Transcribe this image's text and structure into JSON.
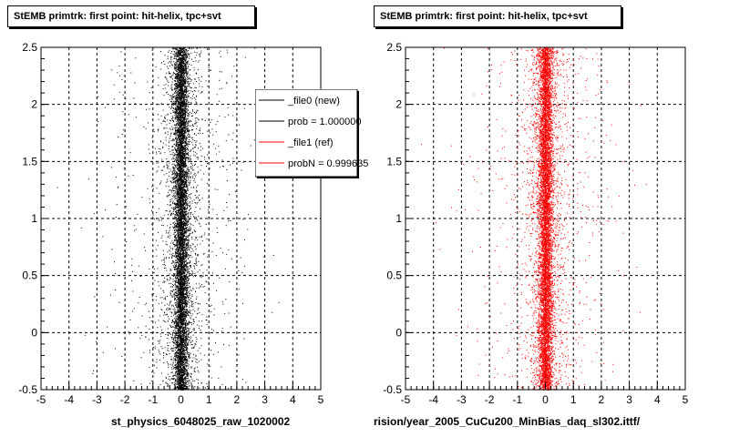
{
  "chart_data": [
    {
      "type": "scatter",
      "title": "StEMB primtrk: first point: hit-helix, tpc+svt",
      "xlabel": "st_physics_6048025_raw_1020002",
      "ylabel": "",
      "xlim": [
        -5,
        5
      ],
      "ylim": [
        -0.5,
        2.5
      ],
      "x_ticks": [
        "-5",
        "-4",
        "-3",
        "-2",
        "-1",
        "0",
        "1",
        "2",
        "3",
        "4",
        "5"
      ],
      "y_ticks": [
        "-0.5",
        "0",
        "0.5",
        "1",
        "1.5",
        "2",
        "2.5"
      ],
      "grid": true,
      "series": [
        {
          "name": "_file0 (new)",
          "color": "#000000",
          "distribution": {
            "x_center": 0.0,
            "x_core_sigma": 0.12,
            "x_wide_sigma": 0.9,
            "y_min": -0.5,
            "y_max": 2.5
          }
        }
      ],
      "legend": {
        "placement": "top-right",
        "entries": [
          {
            "label": "_file0 (new)",
            "color": "#000000"
          },
          {
            "label": "prob = 1.000000",
            "color": "#000000"
          },
          {
            "label": "_file1 (ref)",
            "color": "#ff0000"
          },
          {
            "label": "probN = 0.999635",
            "color": "#ff0000"
          }
        ]
      }
    },
    {
      "type": "scatter",
      "title": "StEMB primtrk: first point: hit-helix, tpc+svt",
      "xlabel": "rision/year_2005_CuCu200_MinBias_daq_sl302.ittf/",
      "ylabel": "",
      "xlim": [
        -5,
        5
      ],
      "ylim": [
        -0.5,
        2.5
      ],
      "x_ticks": [
        "-5",
        "-4",
        "-3",
        "-2",
        "-1",
        "0",
        "1",
        "2",
        "3",
        "4",
        "5"
      ],
      "y_ticks": [
        "-0.5",
        "0",
        "0.5",
        "1",
        "1.5",
        "2",
        "2.5"
      ],
      "grid": true,
      "series": [
        {
          "name": "_file1 (ref)",
          "color": "#ff0000",
          "distribution": {
            "x_center": 0.0,
            "x_core_sigma": 0.12,
            "x_wide_sigma": 0.9,
            "y_min": -0.5,
            "y_max": 2.5
          }
        }
      ]
    }
  ]
}
